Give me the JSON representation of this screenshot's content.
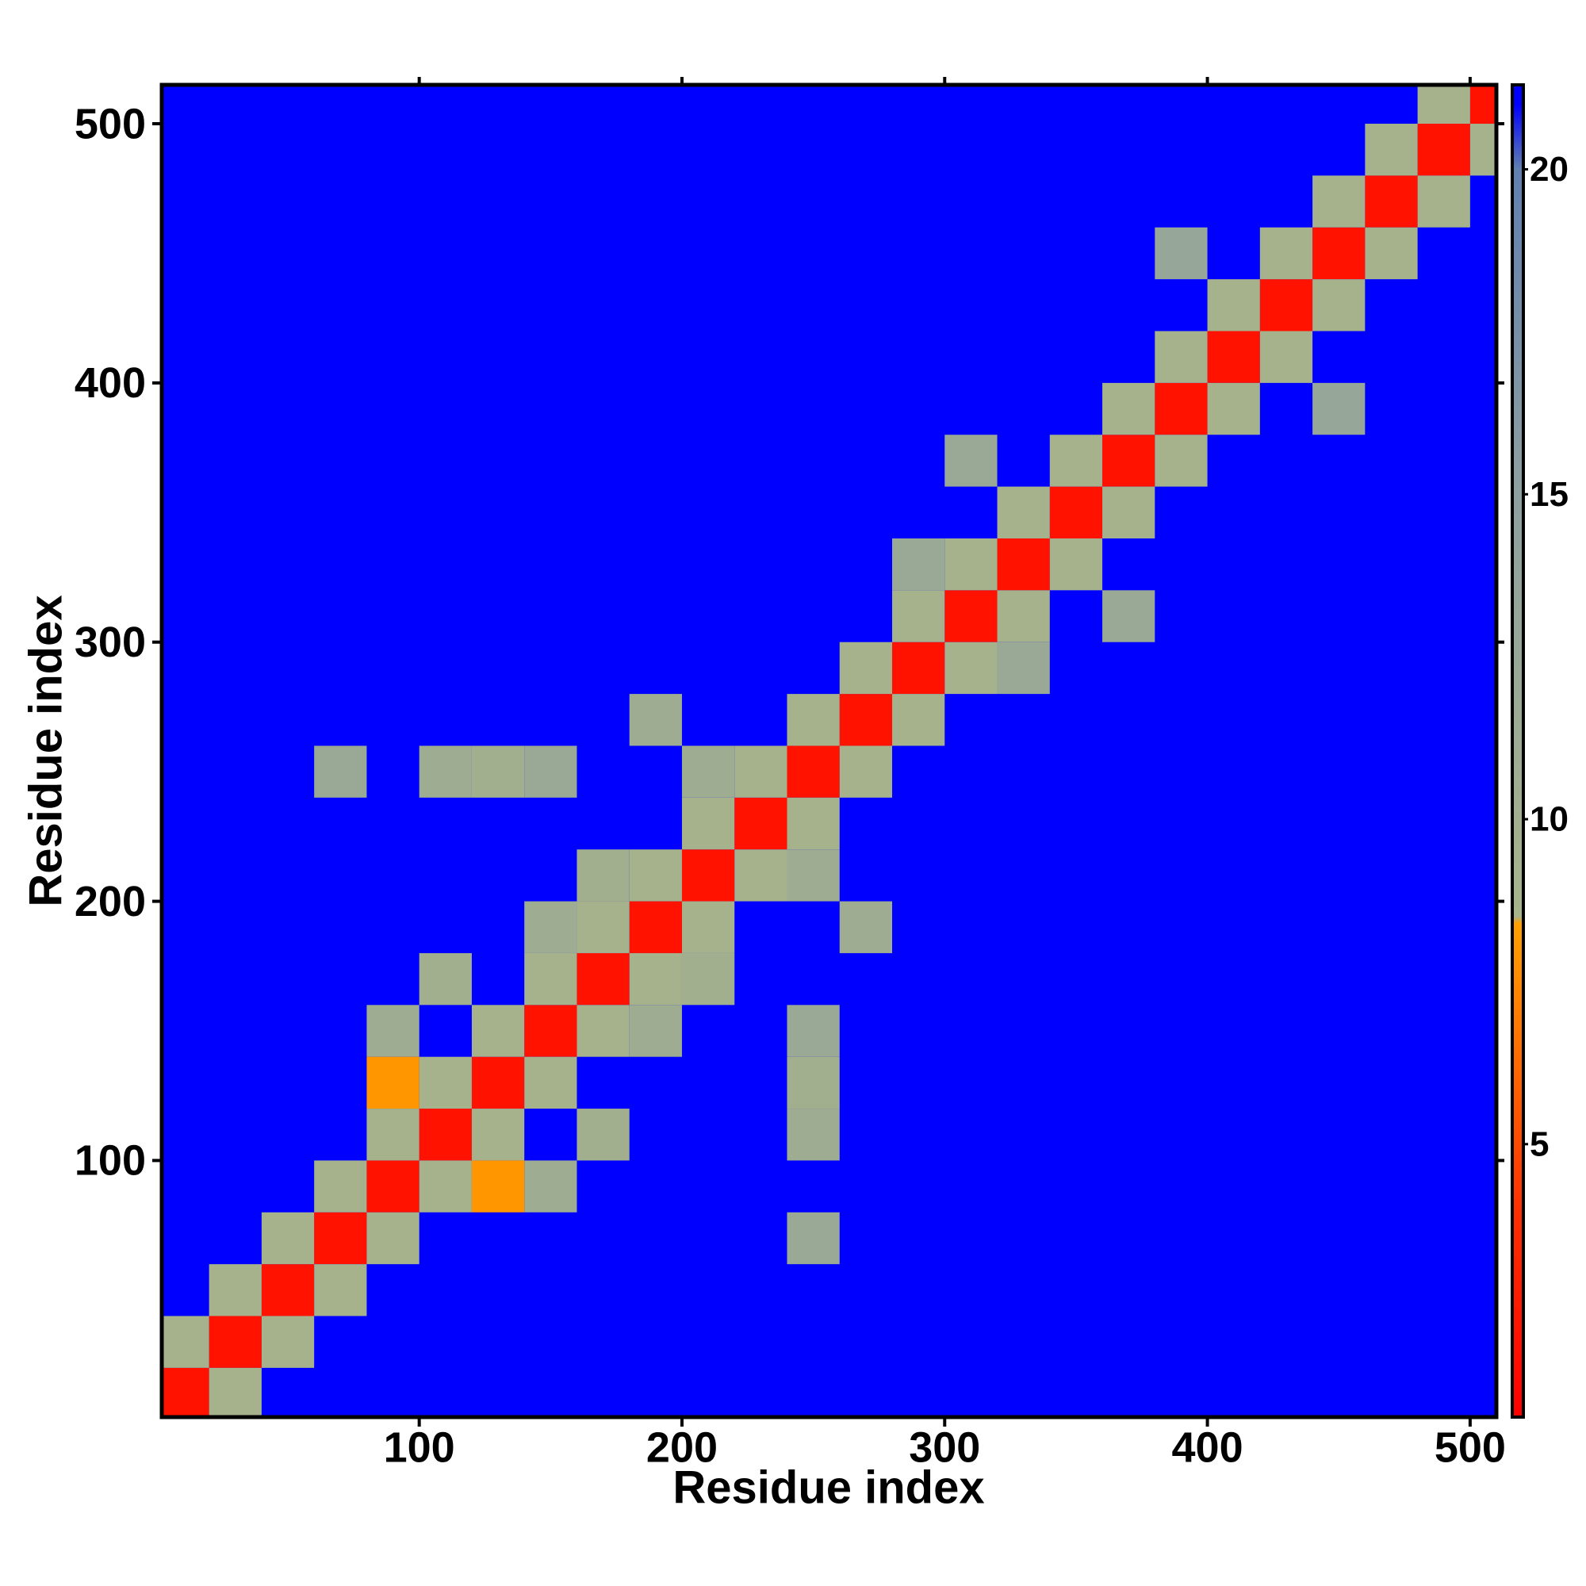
{
  "chart_data": {
    "type": "heatmap",
    "x_label": "Residue index",
    "y_label": "Residue index",
    "xlim": [
      2,
      510
    ],
    "ylim": [
      1,
      515
    ],
    "xticks": [
      100,
      200,
      300,
      400,
      500
    ],
    "yticks": [
      100,
      200,
      300,
      400,
      500
    ],
    "cell_size": 20,
    "background": "#0000ff",
    "x": [
      10,
      30,
      50,
      70,
      90,
      110,
      130,
      150,
      170,
      190,
      210,
      230,
      250,
      270,
      290,
      310,
      330,
      350,
      370,
      390,
      410,
      430,
      450,
      470,
      490,
      510,
      10,
      30,
      50,
      70,
      90,
      110,
      130,
      150,
      170,
      190,
      210,
      230,
      250,
      270,
      290,
      310,
      330,
      350,
      370,
      390,
      410,
      430,
      450,
      470,
      490,
      30,
      50,
      70,
      90,
      110,
      130,
      150,
      170,
      190,
      210,
      230,
      250,
      270,
      290,
      310,
      330,
      350,
      370,
      390,
      410,
      430,
      450,
      470,
      490,
      510,
      70,
      110,
      130,
      150,
      190,
      210,
      90,
      110,
      90,
      150,
      170,
      290,
      310,
      390,
      250,
      250,
      250,
      250,
      270,
      250,
      150,
      170,
      130,
      190,
      210,
      330,
      370,
      450
    ],
    "y": [
      10,
      30,
      50,
      70,
      90,
      110,
      130,
      150,
      170,
      190,
      210,
      230,
      250,
      270,
      290,
      310,
      330,
      350,
      370,
      390,
      410,
      430,
      450,
      470,
      490,
      510,
      30,
      50,
      70,
      90,
      110,
      130,
      150,
      170,
      190,
      210,
      230,
      250,
      270,
      290,
      310,
      330,
      350,
      370,
      390,
      410,
      430,
      450,
      470,
      490,
      510,
      10,
      30,
      50,
      70,
      90,
      110,
      130,
      150,
      170,
      190,
      210,
      230,
      250,
      270,
      290,
      310,
      330,
      350,
      370,
      390,
      410,
      430,
      450,
      470,
      490,
      250,
      250,
      250,
      250,
      270,
      250,
      150,
      170,
      130,
      190,
      210,
      330,
      370,
      450,
      70,
      110,
      130,
      150,
      190,
      210,
      90,
      110,
      90,
      150,
      170,
      290,
      310,
      390
    ],
    "values": [
      2,
      2,
      2,
      2,
      2,
      2,
      2,
      2,
      2,
      2,
      2,
      2,
      2,
      2,
      2,
      2,
      2,
      2,
      2,
      2,
      2,
      2,
      2,
      2,
      2,
      2,
      9,
      9,
      9,
      9,
      9,
      9,
      9,
      9,
      9,
      9,
      9,
      9,
      9,
      9,
      9,
      9,
      9,
      9,
      9,
      9,
      9,
      9,
      9,
      9,
      9,
      9,
      9,
      9,
      9,
      9,
      9,
      9,
      9,
      9,
      9,
      9,
      9,
      9,
      9,
      9,
      9,
      9,
      9,
      9,
      9,
      9,
      9,
      9,
      9,
      9,
      12,
      11,
      10,
      12,
      11,
      11,
      11,
      10,
      8,
      11,
      10,
      12,
      12,
      13,
      12,
      11,
      10,
      12,
      11,
      11,
      11,
      10,
      8,
      11,
      10,
      12,
      12,
      13
    ],
    "zlim": [
      0.8,
      21.3
    ],
    "zticks": [
      5,
      10,
      15,
      20
    ],
    "colorscale": [
      [
        0.8,
        "#ff0000"
      ],
      [
        4,
        "#ff3000"
      ],
      [
        8.4,
        "#ffa000"
      ],
      [
        8.5,
        "#a8b48a"
      ],
      [
        15,
        "#8ea0a0"
      ],
      [
        20,
        "#6080b0"
      ],
      [
        21,
        "#0000ff"
      ]
    ]
  }
}
